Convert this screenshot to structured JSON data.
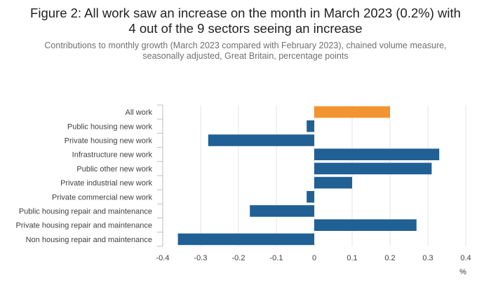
{
  "figure": {
    "title_line1": "Figure 2: All work saw an increase on the month in March 2023 (0.2%) with",
    "title_line2": "4 out of the 9 sectors seeing an increase",
    "subtitle_line1": "Contributions to monthly growth (March 2023 compared with February 2023), chained volume measure,",
    "subtitle_line2": "seasonally adjusted, Great Britain, percentage points"
  },
  "chart_data": {
    "type": "bar",
    "orientation": "horizontal",
    "categories": [
      "All work",
      "Public housing new work",
      "Private housing new work",
      "Infrastructure new work",
      "Public other new work",
      "Private industrial new work",
      "Private commercial new work",
      "Public housing repair and maintenance",
      "Private housing repair and maintenance",
      "Non housing repair and maintenance"
    ],
    "values": [
      0.2,
      -0.02,
      -0.28,
      0.33,
      0.31,
      0.1,
      -0.02,
      -0.17,
      0.27,
      -0.36
    ],
    "highlight_index": 0,
    "xlabel": "%",
    "ylabel": "",
    "xlim": [
      -0.4,
      0.4
    ],
    "xticks": [
      -0.4,
      -0.3,
      -0.2,
      -0.1,
      0,
      0.1,
      0.2,
      0.3,
      0.4
    ],
    "xtick_labels": [
      "-0.4",
      "-0.3",
      "-0.2",
      "-0.1",
      "0",
      "0.1",
      "0.2",
      "0.3",
      "0.4"
    ],
    "grid": true,
    "colors": {
      "highlight": "#F39431",
      "bar": "#206095",
      "grid": "#e4e4e4",
      "axis": "#bebebe",
      "text": "#414042"
    }
  }
}
